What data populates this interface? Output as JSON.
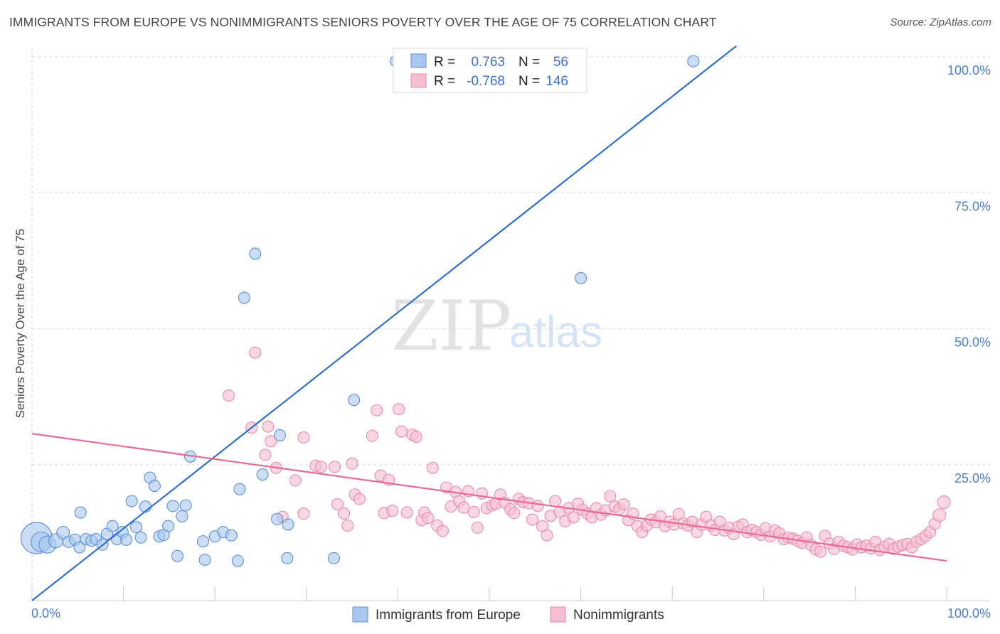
{
  "header": {
    "title": "IMMIGRANTS FROM EUROPE VS NONIMMIGRANTS SENIORS POVERTY OVER THE AGE OF 75 CORRELATION CHART",
    "source": "Source: ZipAtlas.com"
  },
  "watermark": {
    "zip": "ZIP",
    "atlas": "atlas"
  },
  "colors": {
    "blue_fill": "#aac8ef",
    "blue_stroke": "#5b8fd8",
    "blue_line": "#2f6fd0",
    "pink_fill": "#f6bfd0",
    "pink_stroke": "#e88aa8",
    "pink_line": "#e86a93",
    "grid": "#d9d9d9",
    "tick_text": "#4a7fd0"
  },
  "legend": {
    "rows": [
      {
        "r_label": "R =",
        "r_value": "0.763",
        "n_label": "N =",
        "n_value": "56"
      },
      {
        "r_label": "R =",
        "r_value": "-0.768",
        "n_label": "N =",
        "n_value": "146"
      }
    ]
  },
  "bottom_legend": [
    "Immigrants from Europe",
    "Nonimmigrants"
  ],
  "chart_data": {
    "type": "scatter",
    "title": "IMMIGRANTS FROM EUROPE VS NONIMMIGRANTS SENIORS POVERTY OVER THE AGE OF 75 CORRELATION CHART",
    "xlabel": "",
    "ylabel": "Seniors Poverty Over the Age of 75",
    "xlim": [
      0,
      100
    ],
    "ylim": [
      0,
      100
    ],
    "x_tick_labels": [
      "0.0%",
      "100.0%"
    ],
    "y_tick_labels": [
      "100.0%",
      "75.0%",
      "50.0%",
      "25.0%"
    ],
    "y_ticks": [
      100,
      75,
      50,
      25
    ],
    "grid": true,
    "legend_position": "top-center",
    "series": [
      {
        "name": "Immigrants from Europe",
        "r": 0.763,
        "n": 56,
        "trend": {
          "x": [
            0,
            77
          ],
          "y": [
            0,
            102
          ]
        },
        "points": [
          [
            0.5,
            11.5,
            22
          ],
          [
            1.0,
            10.8,
            14
          ],
          [
            1.7,
            10.3,
            12
          ],
          [
            2.6,
            11.0,
            10
          ],
          [
            3.4,
            12.5,
            9
          ],
          [
            4.0,
            10.8,
            8
          ],
          [
            4.7,
            11.2,
            8
          ],
          [
            5.2,
            9.8,
            8
          ],
          [
            5.3,
            16.2,
            8
          ],
          [
            5.9,
            11.3,
            8
          ],
          [
            6.5,
            11.0,
            8
          ],
          [
            7.0,
            11.3,
            8
          ],
          [
            7.7,
            10.3,
            8
          ],
          [
            8.2,
            12.3,
            8
          ],
          [
            8.8,
            13.7,
            8
          ],
          [
            9.3,
            11.3,
            8
          ],
          [
            9.9,
            12.6,
            8
          ],
          [
            10.3,
            11.2,
            8
          ],
          [
            10.9,
            18.3,
            8
          ],
          [
            11.4,
            13.5,
            8
          ],
          [
            11.9,
            11.6,
            8
          ],
          [
            12.4,
            17.3,
            8
          ],
          [
            12.9,
            22.6,
            8
          ],
          [
            13.4,
            21.1,
            8
          ],
          [
            13.9,
            11.8,
            8
          ],
          [
            14.4,
            12.1,
            8
          ],
          [
            14.9,
            13.7,
            8
          ],
          [
            15.4,
            17.4,
            8
          ],
          [
            15.9,
            8.2,
            8
          ],
          [
            16.4,
            15.5,
            8
          ],
          [
            16.8,
            17.5,
            8
          ],
          [
            17.3,
            26.5,
            8
          ],
          [
            18.7,
            10.9,
            8
          ],
          [
            18.9,
            7.5,
            8
          ],
          [
            20.0,
            11.8,
            8
          ],
          [
            20.9,
            12.6,
            8
          ],
          [
            21.8,
            12.0,
            8
          ],
          [
            22.5,
            7.3,
            8
          ],
          [
            22.7,
            20.5,
            8
          ],
          [
            23.2,
            55.7,
            8
          ],
          [
            24.4,
            63.8,
            8
          ],
          [
            25.2,
            23.2,
            8
          ],
          [
            27.1,
            30.4,
            8
          ],
          [
            26.8,
            15.0,
            8
          ],
          [
            28.0,
            14.0,
            8
          ],
          [
            27.9,
            7.8,
            8
          ],
          [
            33.0,
            7.8,
            8
          ],
          [
            35.2,
            36.9,
            8
          ],
          [
            39.8,
            99.2,
            8
          ],
          [
            40.5,
            99.2,
            8
          ],
          [
            60.0,
            59.3,
            8
          ],
          [
            72.3,
            99.2,
            8
          ]
        ]
      },
      {
        "name": "Nonimmigrants",
        "r": -0.768,
        "n": 146,
        "trend": {
          "x": [
            0,
            100
          ],
          "y": [
            30.7,
            7.3
          ]
        },
        "points": [
          [
            21.5,
            37.7,
            8
          ],
          [
            24.0,
            31.8,
            8
          ],
          [
            24.4,
            45.6,
            8
          ],
          [
            25.5,
            26.8,
            8
          ],
          [
            25.8,
            32.0,
            8
          ],
          [
            26.1,
            29.3,
            8
          ],
          [
            26.7,
            24.4,
            8
          ],
          [
            27.4,
            15.4,
            8
          ],
          [
            28.8,
            22.1,
            8
          ],
          [
            29.7,
            30.0,
            8
          ],
          [
            29.7,
            16.0,
            8
          ],
          [
            31.0,
            24.8,
            8
          ],
          [
            31.6,
            24.6,
            8
          ],
          [
            33.1,
            24.6,
            8
          ],
          [
            33.4,
            17.7,
            8
          ],
          [
            34.1,
            16.0,
            8
          ],
          [
            34.5,
            13.8,
            8
          ],
          [
            35.0,
            25.2,
            8
          ],
          [
            35.3,
            19.5,
            8
          ],
          [
            35.8,
            18.7,
            8
          ],
          [
            37.2,
            30.3,
            8
          ],
          [
            37.7,
            35.0,
            8
          ],
          [
            38.1,
            23.0,
            8
          ],
          [
            38.5,
            16.1,
            8
          ],
          [
            39.0,
            22.2,
            8
          ],
          [
            39.4,
            16.5,
            8
          ],
          [
            40.1,
            35.2,
            8
          ],
          [
            40.4,
            31.1,
            8
          ],
          [
            41.0,
            16.2,
            8
          ],
          [
            41.6,
            30.5,
            8
          ],
          [
            42.0,
            30.1,
            8
          ],
          [
            42.6,
            14.8,
            8
          ],
          [
            42.9,
            16.2,
            8
          ],
          [
            43.3,
            15.2,
            8
          ],
          [
            43.8,
            24.4,
            8
          ],
          [
            44.3,
            13.8,
            8
          ],
          [
            44.9,
            12.8,
            8
          ],
          [
            45.3,
            20.8,
            8
          ],
          [
            45.8,
            17.3,
            8
          ],
          [
            46.3,
            20.0,
            8
          ],
          [
            46.7,
            18.3,
            8
          ],
          [
            47.2,
            17.1,
            8
          ],
          [
            47.7,
            20.1,
            8
          ],
          [
            48.3,
            16.3,
            8
          ],
          [
            48.7,
            13.4,
            8
          ],
          [
            49.2,
            19.7,
            8
          ],
          [
            49.7,
            17.0,
            8
          ],
          [
            50.3,
            17.5,
            8
          ],
          [
            50.7,
            17.8,
            8
          ],
          [
            51.2,
            19.5,
            8
          ],
          [
            51.7,
            18.0,
            8
          ],
          [
            52.3,
            16.8,
            8
          ],
          [
            52.7,
            16.1,
            8
          ],
          [
            53.2,
            18.7,
            8
          ],
          [
            53.7,
            18.1,
            8
          ],
          [
            54.3,
            17.9,
            8
          ],
          [
            54.7,
            14.9,
            8
          ],
          [
            55.3,
            17.4,
            8
          ],
          [
            55.8,
            13.7,
            8
          ],
          [
            56.3,
            12.0,
            8
          ],
          [
            56.7,
            15.6,
            8
          ],
          [
            57.2,
            18.3,
            8
          ],
          [
            57.7,
            16.3,
            8
          ],
          [
            58.3,
            14.6,
            8
          ],
          [
            58.7,
            17.0,
            8
          ],
          [
            59.2,
            15.3,
            8
          ],
          [
            59.7,
            17.8,
            8
          ],
          [
            60.2,
            16.7,
            8
          ],
          [
            60.7,
            16.0,
            8
          ],
          [
            61.2,
            15.3,
            8
          ],
          [
            61.7,
            17.0,
            8
          ],
          [
            62.2,
            15.8,
            8
          ],
          [
            62.7,
            16.6,
            8
          ],
          [
            63.2,
            19.2,
            8
          ],
          [
            63.7,
            17.3,
            8
          ],
          [
            64.2,
            16.8,
            8
          ],
          [
            64.7,
            17.7,
            8
          ],
          [
            65.2,
            14.8,
            8
          ],
          [
            65.7,
            16.0,
            8
          ],
          [
            66.2,
            13.7,
            8
          ],
          [
            66.7,
            12.6,
            8
          ],
          [
            67.2,
            13.8,
            8
          ],
          [
            67.7,
            14.9,
            8
          ],
          [
            68.2,
            14.4,
            8
          ],
          [
            68.7,
            15.5,
            8
          ],
          [
            69.2,
            13.7,
            8
          ],
          [
            69.7,
            14.5,
            8
          ],
          [
            70.2,
            14.0,
            8
          ],
          [
            70.7,
            15.9,
            8
          ],
          [
            71.2,
            14.2,
            8
          ],
          [
            71.7,
            13.8,
            8
          ],
          [
            72.2,
            14.5,
            8
          ],
          [
            72.7,
            12.6,
            8
          ],
          [
            73.2,
            14.0,
            8
          ],
          [
            73.7,
            15.4,
            8
          ],
          [
            74.2,
            13.8,
            8
          ],
          [
            74.7,
            13.0,
            8
          ],
          [
            75.2,
            14.5,
            8
          ],
          [
            75.7,
            12.9,
            8
          ],
          [
            76.2,
            13.4,
            8
          ],
          [
            76.7,
            12.2,
            8
          ],
          [
            77.2,
            13.6,
            8
          ],
          [
            77.7,
            14.0,
            8
          ],
          [
            78.2,
            12.6,
            8
          ],
          [
            78.7,
            13.0,
            8
          ],
          [
            79.2,
            12.6,
            8
          ],
          [
            79.7,
            12.1,
            8
          ],
          [
            80.2,
            13.3,
            8
          ],
          [
            80.7,
            11.8,
            8
          ],
          [
            81.2,
            12.9,
            8
          ],
          [
            81.7,
            12.4,
            8
          ],
          [
            82.2,
            11.3,
            8
          ],
          [
            82.7,
            11.6,
            8
          ],
          [
            83.2,
            11.4,
            8
          ],
          [
            83.7,
            11.0,
            8
          ],
          [
            84.2,
            10.6,
            8
          ],
          [
            84.7,
            11.6,
            8
          ],
          [
            85.2,
            10.2,
            8
          ],
          [
            85.7,
            9.4,
            8
          ],
          [
            86.2,
            9.0,
            8
          ],
          [
            86.7,
            11.9,
            8
          ],
          [
            87.2,
            10.5,
            8
          ],
          [
            87.7,
            9.5,
            8
          ],
          [
            88.2,
            10.8,
            8
          ],
          [
            88.7,
            10.1,
            8
          ],
          [
            89.2,
            9.8,
            8
          ],
          [
            89.7,
            9.4,
            8
          ],
          [
            90.2,
            10.3,
            8
          ],
          [
            90.7,
            9.8,
            8
          ],
          [
            91.2,
            10.1,
            8
          ],
          [
            91.7,
            9.6,
            8
          ],
          [
            92.2,
            10.8,
            8
          ],
          [
            92.7,
            9.3,
            8
          ],
          [
            93.2,
            9.9,
            8
          ],
          [
            93.7,
            10.4,
            8
          ],
          [
            94.2,
            9.5,
            8
          ],
          [
            94.7,
            9.9,
            8
          ],
          [
            95.2,
            10.2,
            8
          ],
          [
            95.7,
            10.4,
            8
          ],
          [
            96.2,
            9.8,
            8
          ],
          [
            96.7,
            10.8,
            8
          ],
          [
            97.2,
            11.3,
            8
          ],
          [
            97.7,
            11.9,
            8
          ],
          [
            98.2,
            12.6,
            8
          ],
          [
            98.7,
            14.1,
            8
          ],
          [
            99.2,
            15.7,
            9
          ],
          [
            99.7,
            18.1,
            9
          ]
        ]
      }
    ]
  }
}
